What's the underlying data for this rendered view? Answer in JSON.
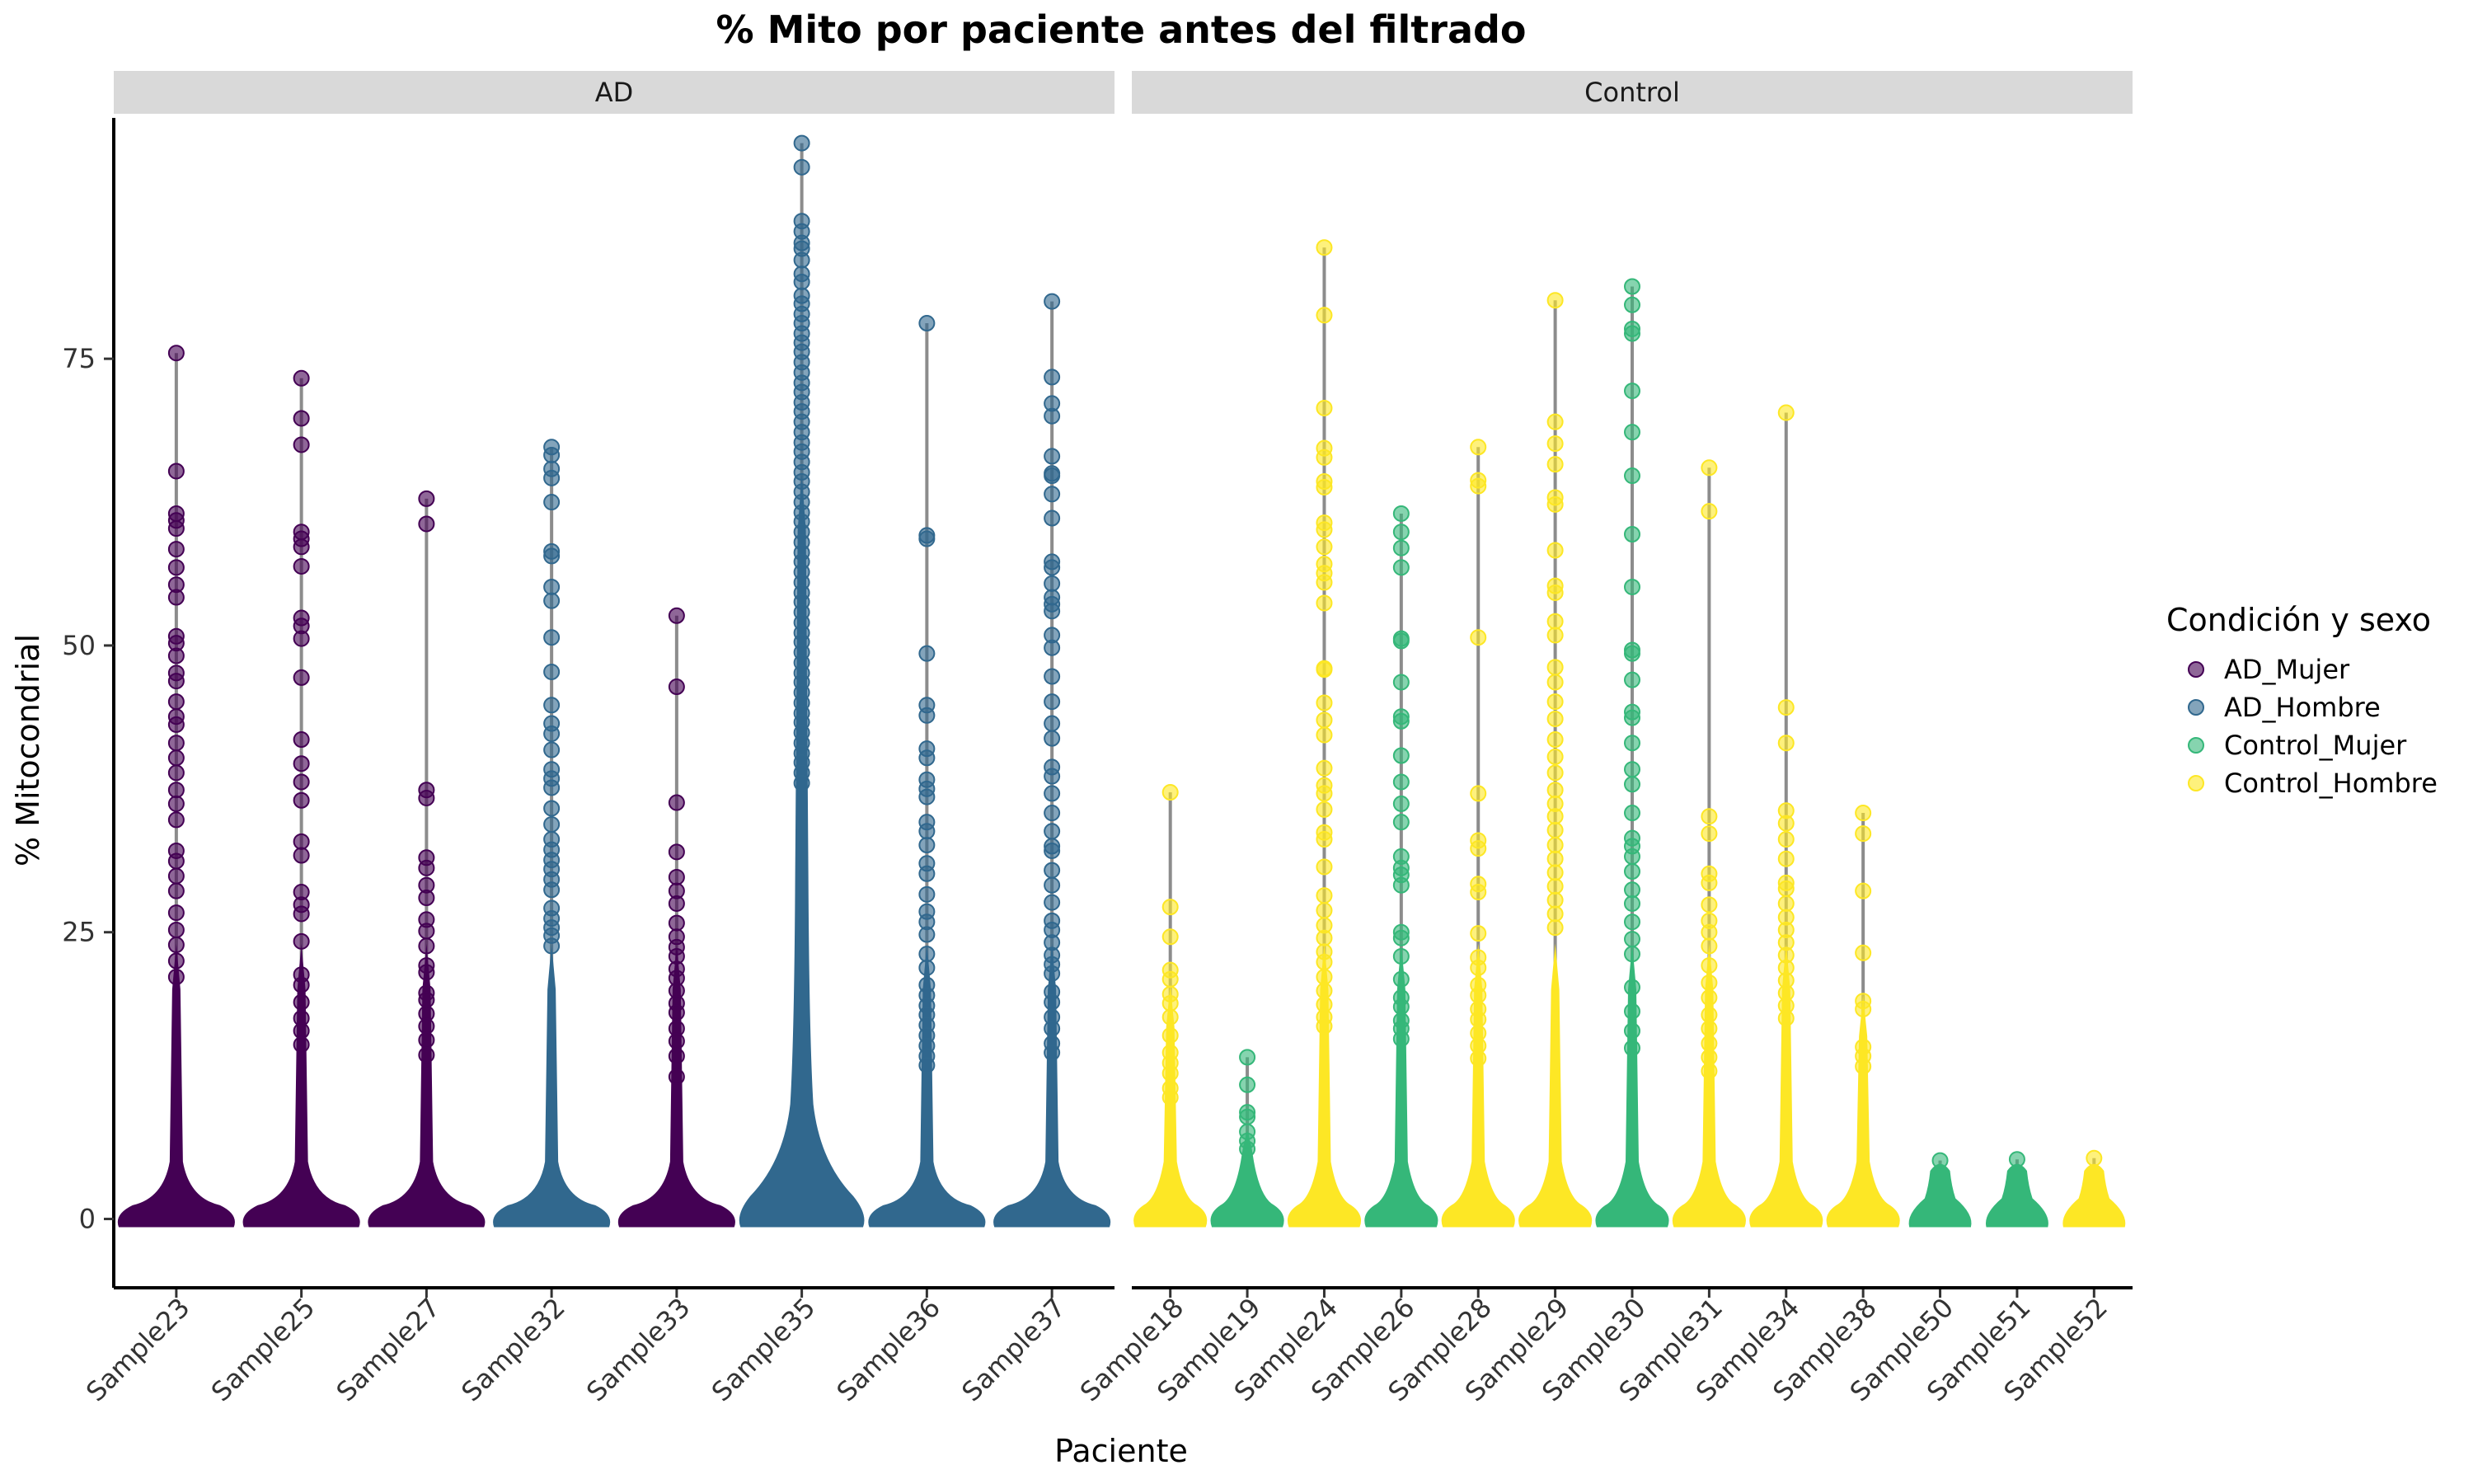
{
  "chart_data": {
    "type": "scatter",
    "title": "% Mito por paciente antes del filtrado",
    "xlabel": "Paciente",
    "ylabel": "% Mitocondrial",
    "ylim": [
      -6,
      96
    ],
    "yticks": [
      0,
      25,
      50,
      75
    ],
    "grid": false,
    "legend": {
      "title": "Condición y sexo",
      "placement": "right",
      "entries": [
        {
          "name": "AD_Mujer",
          "color": "#440154"
        },
        {
          "name": "AD_Hombre",
          "color": "#31688E"
        },
        {
          "name": "Control_Mujer",
          "color": "#35B779"
        },
        {
          "name": "Control_Hombre",
          "color": "#FDE725"
        }
      ]
    },
    "facets": [
      {
        "label": "AD",
        "samples": [
          {
            "name": "Sample23",
            "group": "AD_Mujer",
            "max": 75.5,
            "outliers": [
              65.2,
              61.5,
              60.9,
              60.2,
              58.4,
              56.8,
              55.3,
              54.2,
              50.8,
              50.2,
              49.1,
              47.6,
              46.9,
              45.1,
              43.8,
              43.1,
              41.5,
              40.2,
              38.9,
              37.4,
              36.2,
              34.8,
              32.1,
              31.2,
              29.9,
              28.6,
              26.7,
              25.2,
              23.9,
              22.5,
              21.1
            ]
          },
          {
            "name": "Sample25",
            "group": "AD_Mujer",
            "max": 73.3,
            "outliers": [
              69.8,
              67.5,
              59.9,
              59.3,
              58.6,
              56.9,
              52.4,
              51.7,
              50.6,
              47.2,
              41.8,
              39.7,
              38.1,
              36.5,
              32.9,
              31.7,
              28.5,
              27.4,
              26.6,
              24.2,
              21.3,
              20.4,
              18.9,
              17.5,
              16.4,
              15.2
            ]
          },
          {
            "name": "Sample27",
            "group": "AD_Mujer",
            "max": 62.8,
            "outliers": [
              60.6,
              37.4,
              36.7,
              31.5,
              30.6,
              29.1,
              28.0,
              26.1,
              25.1,
              23.8,
              22.1,
              21.5,
              19.7,
              19.1,
              17.9,
              16.8,
              15.6,
              14.3
            ]
          },
          {
            "name": "Sample32",
            "group": "AD_Hombre",
            "max": 67.3,
            "outliers": [
              66.6,
              65.4,
              64.6,
              62.5,
              58.2,
              57.8,
              55.1,
              53.9,
              50.7,
              47.7,
              44.8,
              43.2,
              42.3,
              40.9,
              39.2,
              38.4,
              37.6,
              35.8,
              34.4,
              33.1,
              32.2,
              31.3,
              30.5,
              29.6,
              28.7,
              27.1,
              26.2,
              25.4,
              24.7,
              23.8
            ]
          },
          {
            "name": "Sample33",
            "group": "AD_Mujer",
            "max": 52.6,
            "outliers": [
              46.4,
              36.3,
              32.0,
              29.8,
              28.6,
              27.5,
              25.8,
              24.6,
              23.7,
              22.9,
              21.8,
              21.0,
              19.9,
              18.8,
              18.0,
              16.6,
              15.5,
              14.2,
              12.4
            ]
          },
          {
            "name": "Sample35",
            "group": "AD_Hombre",
            "max": 93.8,
            "outliers": [
              91.7,
              87.0,
              86.1,
              85.1,
              84.6,
              83.6,
              82.4,
              81.7,
              80.5,
              79.8,
              78.9,
              78.1,
              77.2,
              76.4,
              75.6,
              74.7,
              73.8,
              72.9,
              72.1,
              71.2,
              70.4,
              69.5,
              68.6,
              67.7,
              66.9,
              66.0,
              65.1,
              64.3,
              63.4,
              62.5,
              61.6,
              60.8,
              59.9,
              59.0,
              58.1,
              57.3,
              56.4,
              55.5,
              54.6,
              53.8,
              52.9,
              52.0,
              51.1,
              50.3,
              49.4,
              48.5,
              47.6,
              46.8,
              45.9,
              45.0,
              44.1,
              43.3,
              42.4,
              41.5,
              40.6,
              39.8,
              38.9,
              38.0
            ]
          },
          {
            "name": "Sample36",
            "group": "AD_Hombre",
            "max": 78.1,
            "outliers": [
              59.6,
              59.3,
              49.3,
              44.8,
              43.9,
              41.0,
              40.2,
              38.3,
              37.5,
              36.8,
              34.6,
              33.8,
              32.6,
              31.0,
              30.1,
              28.3,
              26.8,
              25.9,
              24.8,
              23.1,
              21.9,
              20.4,
              19.5,
              18.6,
              17.8,
              16.9,
              16.0,
              15.1,
              14.2,
              13.4
            ]
          },
          {
            "name": "Sample37",
            "group": "AD_Hombre",
            "max": 80.0,
            "outliers": [
              73.4,
              71.1,
              70.0,
              66.5,
              65.0,
              64.8,
              63.2,
              61.1,
              57.3,
              56.8,
              55.4,
              54.2,
              53.6,
              53.0,
              50.9,
              49.8,
              47.3,
              45.1,
              43.2,
              41.9,
              39.4,
              38.6,
              37.1,
              35.4,
              33.8,
              32.5,
              32.1,
              30.4,
              29.1,
              27.6,
              26.0,
              25.2,
              24.1,
              23.0,
              22.2,
              21.4,
              19.8,
              18.9,
              17.6,
              16.6,
              15.3,
              14.5
            ]
          }
        ]
      },
      {
        "label": "Control",
        "samples": [
          {
            "name": "Sample18",
            "group": "Control_Hombre",
            "max": 37.2,
            "outliers": [
              27.2,
              24.6,
              21.7,
              20.9,
              19.6,
              18.8,
              17.6,
              16.0,
              14.5,
              13.6,
              12.7,
              11.4,
              10.6
            ]
          },
          {
            "name": "Sample19",
            "group": "Control_Mujer",
            "max": 14.1,
            "outliers": [
              11.7,
              9.3,
              8.9,
              7.6,
              6.8,
              6.1
            ]
          },
          {
            "name": "Sample24",
            "group": "Control_Hombre",
            "max": 84.7,
            "outliers": [
              78.8,
              70.7,
              67.2,
              66.4,
              64.3,
              63.8,
              60.7,
              60.1,
              58.6,
              57.1,
              56.3,
              55.5,
              53.7,
              48.0,
              47.9,
              45.0,
              43.5,
              42.2,
              39.3,
              37.8,
              37.1,
              35.7,
              33.7,
              33.1,
              30.7,
              28.2,
              26.9,
              25.6,
              24.5,
              23.3,
              22.4,
              21.1,
              19.9,
              18.7,
              17.6,
              16.8
            ]
          },
          {
            "name": "Sample26",
            "group": "Control_Mujer",
            "max": 61.5,
            "outliers": [
              59.9,
              58.5,
              56.8,
              50.6,
              50.4,
              46.8,
              43.8,
              43.4,
              40.4,
              38.1,
              36.2,
              34.6,
              31.6,
              30.6,
              30.0,
              29.1,
              25.0,
              24.5,
              22.9,
              20.9,
              19.3,
              18.5,
              17.3,
              16.6,
              15.7
            ]
          },
          {
            "name": "Sample28",
            "group": "Control_Hombre",
            "max": 67.3,
            "outliers": [
              64.4,
              63.9,
              50.7,
              37.1,
              33.0,
              32.3,
              29.2,
              28.5,
              24.9,
              22.8,
              21.9,
              20.4,
              19.5,
              18.3,
              17.4,
              16.2,
              15.1,
              14.0
            ]
          },
          {
            "name": "Sample29",
            "group": "Control_Hombre",
            "max": 80.1,
            "outliers": [
              69.5,
              67.6,
              65.8,
              62.9,
              62.3,
              58.3,
              55.2,
              54.6,
              52.1,
              50.9,
              48.1,
              46.8,
              45.1,
              43.6,
              41.8,
              40.3,
              38.9,
              37.4,
              36.2,
              35.1,
              33.9,
              32.6,
              31.4,
              30.2,
              29.0,
              27.8,
              26.6,
              25.4
            ]
          },
          {
            "name": "Sample30",
            "group": "Control_Mujer",
            "max": 81.3,
            "outliers": [
              79.7,
              77.6,
              77.2,
              72.2,
              68.6,
              64.8,
              59.7,
              55.1,
              49.6,
              49.3,
              47.0,
              44.2,
              43.7,
              41.5,
              39.2,
              37.9,
              35.4,
              33.2,
              32.5,
              31.6,
              30.3,
              28.7,
              27.5,
              25.9,
              24.4,
              23.1,
              20.2,
              18.1,
              16.4,
              14.9
            ]
          },
          {
            "name": "Sample31",
            "group": "Control_Hombre",
            "max": 65.5,
            "outliers": [
              61.7,
              35.1,
              33.6,
              30.1,
              29.3,
              27.4,
              26.0,
              25.0,
              23.8,
              22.1,
              20.6,
              19.3,
              17.8,
              16.6,
              15.3,
              14.1,
              12.9
            ]
          },
          {
            "name": "Sample34",
            "group": "Control_Hombre",
            "max": 70.3,
            "outliers": [
              44.6,
              41.5,
              35.6,
              34.5,
              33.1,
              31.4,
              29.3,
              28.8,
              27.5,
              26.3,
              25.2,
              24.1,
              23.0,
              21.9,
              20.8,
              19.7,
              18.6,
              17.5
            ]
          },
          {
            "name": "Sample38",
            "group": "Control_Hombre",
            "max": 35.4,
            "outliers": [
              33.6,
              28.6,
              23.2,
              19.0,
              18.3,
              15.0,
              14.2,
              13.3
            ]
          },
          {
            "name": "Sample50",
            "group": "Control_Mujer",
            "max": 5.1,
            "outliers": []
          },
          {
            "name": "Sample51",
            "group": "Control_Mujer",
            "max": 5.2,
            "outliers": []
          },
          {
            "name": "Sample52",
            "group": "Control_Hombre",
            "max": 5.3,
            "outliers": []
          }
        ]
      }
    ]
  }
}
